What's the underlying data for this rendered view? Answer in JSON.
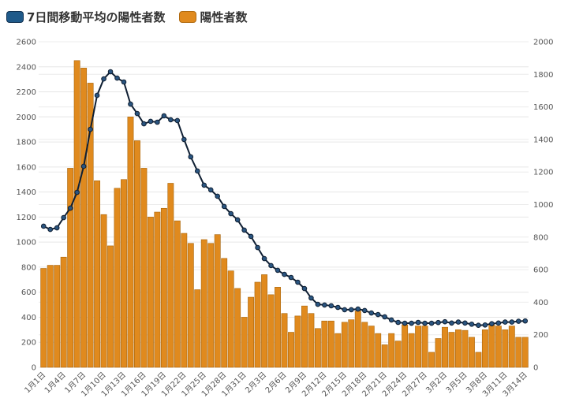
{
  "legend": [
    {
      "label": "7日間移動平均の陽性者数",
      "color": "#1f5a8a"
    },
    {
      "label": "陽性者数",
      "color": "#e08a1e"
    }
  ],
  "chart_data": {
    "type": "bar+line",
    "title": "",
    "xlabel": "",
    "ylabel_left": "",
    "ylabel_right": "",
    "ylim_left": [
      0,
      2600
    ],
    "yticks_left": [
      0,
      200,
      400,
      600,
      800,
      1000,
      1200,
      1400,
      1600,
      1800,
      2000,
      2200,
      2400,
      2600
    ],
    "ylim_right": [
      0,
      2000
    ],
    "yticks_right": [
      0,
      200,
      400,
      600,
      800,
      1000,
      1200,
      1400,
      1600,
      1800,
      2000
    ],
    "grid": true,
    "legend_position": "top-left",
    "categories": [
      "1月1日",
      "1月2日",
      "1月3日",
      "1月4日",
      "1月5日",
      "1月6日",
      "1月7日",
      "1月8日",
      "1月9日",
      "1月10日",
      "1月11日",
      "1月12日",
      "1月13日",
      "1月14日",
      "1月15日",
      "1月16日",
      "1月17日",
      "1月18日",
      "1月19日",
      "1月20日",
      "1月21日",
      "1月22日",
      "1月23日",
      "1月24日",
      "1月25日",
      "1月26日",
      "1月27日",
      "1月28日",
      "1月29日",
      "1月30日",
      "1月31日",
      "2月1日",
      "2月2日",
      "2月3日",
      "2月4日",
      "2月5日",
      "2月6日",
      "2月7日",
      "2月8日",
      "2月9日",
      "2月10日",
      "2月11日",
      "2月12日",
      "2月13日",
      "2月14日",
      "2月15日",
      "2月16日",
      "2月17日",
      "2月18日",
      "2月19日",
      "2月20日",
      "2月21日",
      "2月22日",
      "2月23日",
      "2月24日",
      "2月25日",
      "2月26日",
      "2月27日",
      "2月28日",
      "3月1日",
      "3月2日",
      "3月3日",
      "3月4日",
      "3月5日",
      "3月6日",
      "3月7日",
      "3月8日",
      "3月9日",
      "3月10日",
      "3月11日",
      "3月12日",
      "3月13日",
      "3月14日"
    ],
    "xtick_labels": [
      "1月1日",
      "1月4日",
      "1月7日",
      "1月10日",
      "1月13日",
      "1月16日",
      "1月19日",
      "1月22日",
      "1月25日",
      "1月28日",
      "1月31日",
      "2月3日",
      "2月6日",
      "2月9日",
      "2月12日",
      "2月15日",
      "2月18日",
      "2月21日",
      "2月24日",
      "2月27日",
      "3月2日",
      "3月5日",
      "3月8日",
      "3月11日",
      "3月14日"
    ],
    "series": [
      {
        "name": "陽性者数",
        "type": "bar",
        "axis": "left",
        "color": "#e08a1e",
        "values": [
          790,
          815,
          815,
          880,
          1590,
          2450,
          2390,
          2270,
          1490,
          1220,
          970,
          1430,
          1500,
          2000,
          1810,
          1590,
          1200,
          1240,
          1270,
          1470,
          1170,
          1070,
          990,
          620,
          1020,
          990,
          1060,
          870,
          770,
          630,
          400,
          560,
          680,
          740,
          580,
          640,
          430,
          280,
          410,
          490,
          430,
          310,
          370,
          370,
          270,
          360,
          380,
          450,
          360,
          330,
          270,
          180,
          270,
          210,
          340,
          270,
          330,
          330,
          120,
          230,
          320,
          280,
          300,
          295,
          240,
          120,
          300,
          340,
          330,
          300,
          330,
          240,
          240
        ]
      },
      {
        "name": "7日間移動平均の陽性者数",
        "type": "line",
        "axis": "right",
        "color": "#1b3a5c",
        "values": [
          867,
          847,
          857,
          920,
          978,
          1075,
          1235,
          1462,
          1671,
          1772,
          1816,
          1777,
          1753,
          1617,
          1559,
          1496,
          1511,
          1506,
          1545,
          1521,
          1516,
          1400,
          1293,
          1206,
          1119,
          1090,
          1051,
          988,
          944,
          906,
          843,
          804,
          736,
          668,
          625,
          596,
          571,
          552,
          523,
          484,
          426,
          387,
          383,
          378,
          368,
          354,
          354,
          358,
          349,
          334,
          324,
          310,
          291,
          276,
          271,
          271,
          276,
          271,
          271,
          275,
          280,
          272,
          278,
          272,
          265,
          258,
          260,
          268,
          272,
          278,
          278,
          283,
          285
        ]
      }
    ]
  }
}
